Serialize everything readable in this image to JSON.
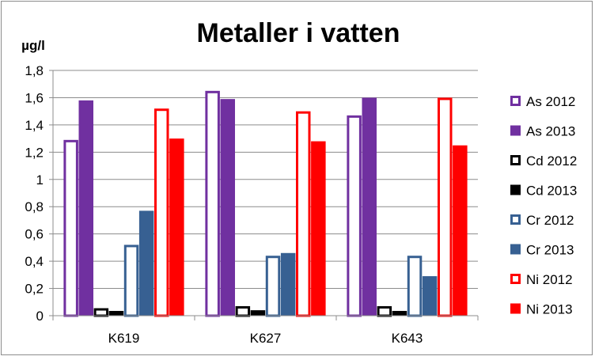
{
  "chart_data": {
    "type": "bar",
    "title": "Metaller i vatten",
    "ylabel": "µg/l",
    "xlabel": "",
    "ylim": [
      0,
      1.8
    ],
    "yticks": [
      "0",
      "0,2",
      "0,4",
      "0,6",
      "0,8",
      "1",
      "1,2",
      "1,4",
      "1,6",
      "1,8"
    ],
    "categories": [
      "K619",
      "K627",
      "K643"
    ],
    "gridlines": true,
    "legend_position": "right",
    "series": [
      {
        "name": "As 2012",
        "values": [
          1.29,
          1.65,
          1.47
        ],
        "color": "#7030a0",
        "fill": "hollow"
      },
      {
        "name": "As 2013",
        "values": [
          1.58,
          1.59,
          1.6
        ],
        "color": "#7030a0",
        "fill": "solid"
      },
      {
        "name": "Cd 2012",
        "values": [
          0.055,
          0.07,
          0.07
        ],
        "color": "#000000",
        "fill": "hollow"
      },
      {
        "name": "Cd 2013",
        "values": [
          0.035,
          0.04,
          0.035
        ],
        "color": "#000000",
        "fill": "solid"
      },
      {
        "name": "Cr 2012",
        "values": [
          0.52,
          0.44,
          0.44
        ],
        "color": "#376092",
        "fill": "hollow"
      },
      {
        "name": "Cr 2013",
        "values": [
          0.77,
          0.46,
          0.29
        ],
        "color": "#376092",
        "fill": "solid"
      },
      {
        "name": "Ni 2012",
        "values": [
          1.52,
          1.5,
          1.6
        ],
        "color": "#ff0000",
        "fill": "hollow"
      },
      {
        "name": "Ni 2013",
        "values": [
          1.3,
          1.28,
          1.25
        ],
        "color": "#ff0000",
        "fill": "solid"
      }
    ]
  }
}
